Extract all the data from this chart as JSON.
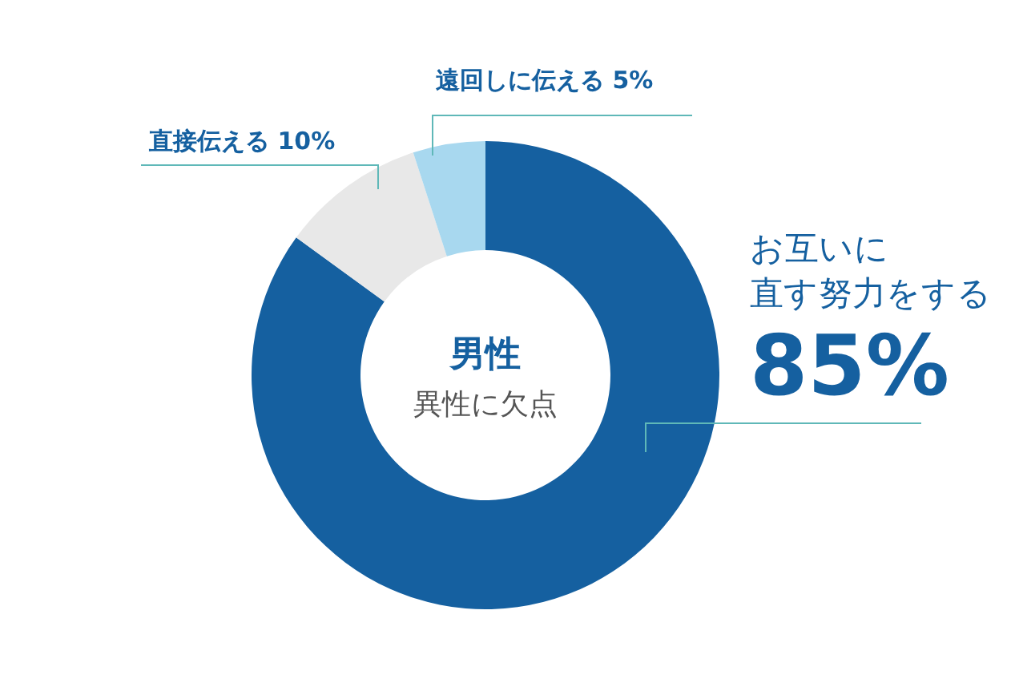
{
  "chart_data": {
    "type": "donut",
    "title": "男性",
    "subtitle": "異性に欠点",
    "categories": [
      "お互いに直す努力をする",
      "直接伝える",
      "遠回しに伝える"
    ],
    "values": [
      85,
      10,
      5
    ],
    "colors": [
      "#1560a0",
      "#e8e8e8",
      "#a8d8ef"
    ],
    "value_labels": [
      "85%",
      "10%",
      "5%"
    ],
    "legend": false
  }
}
